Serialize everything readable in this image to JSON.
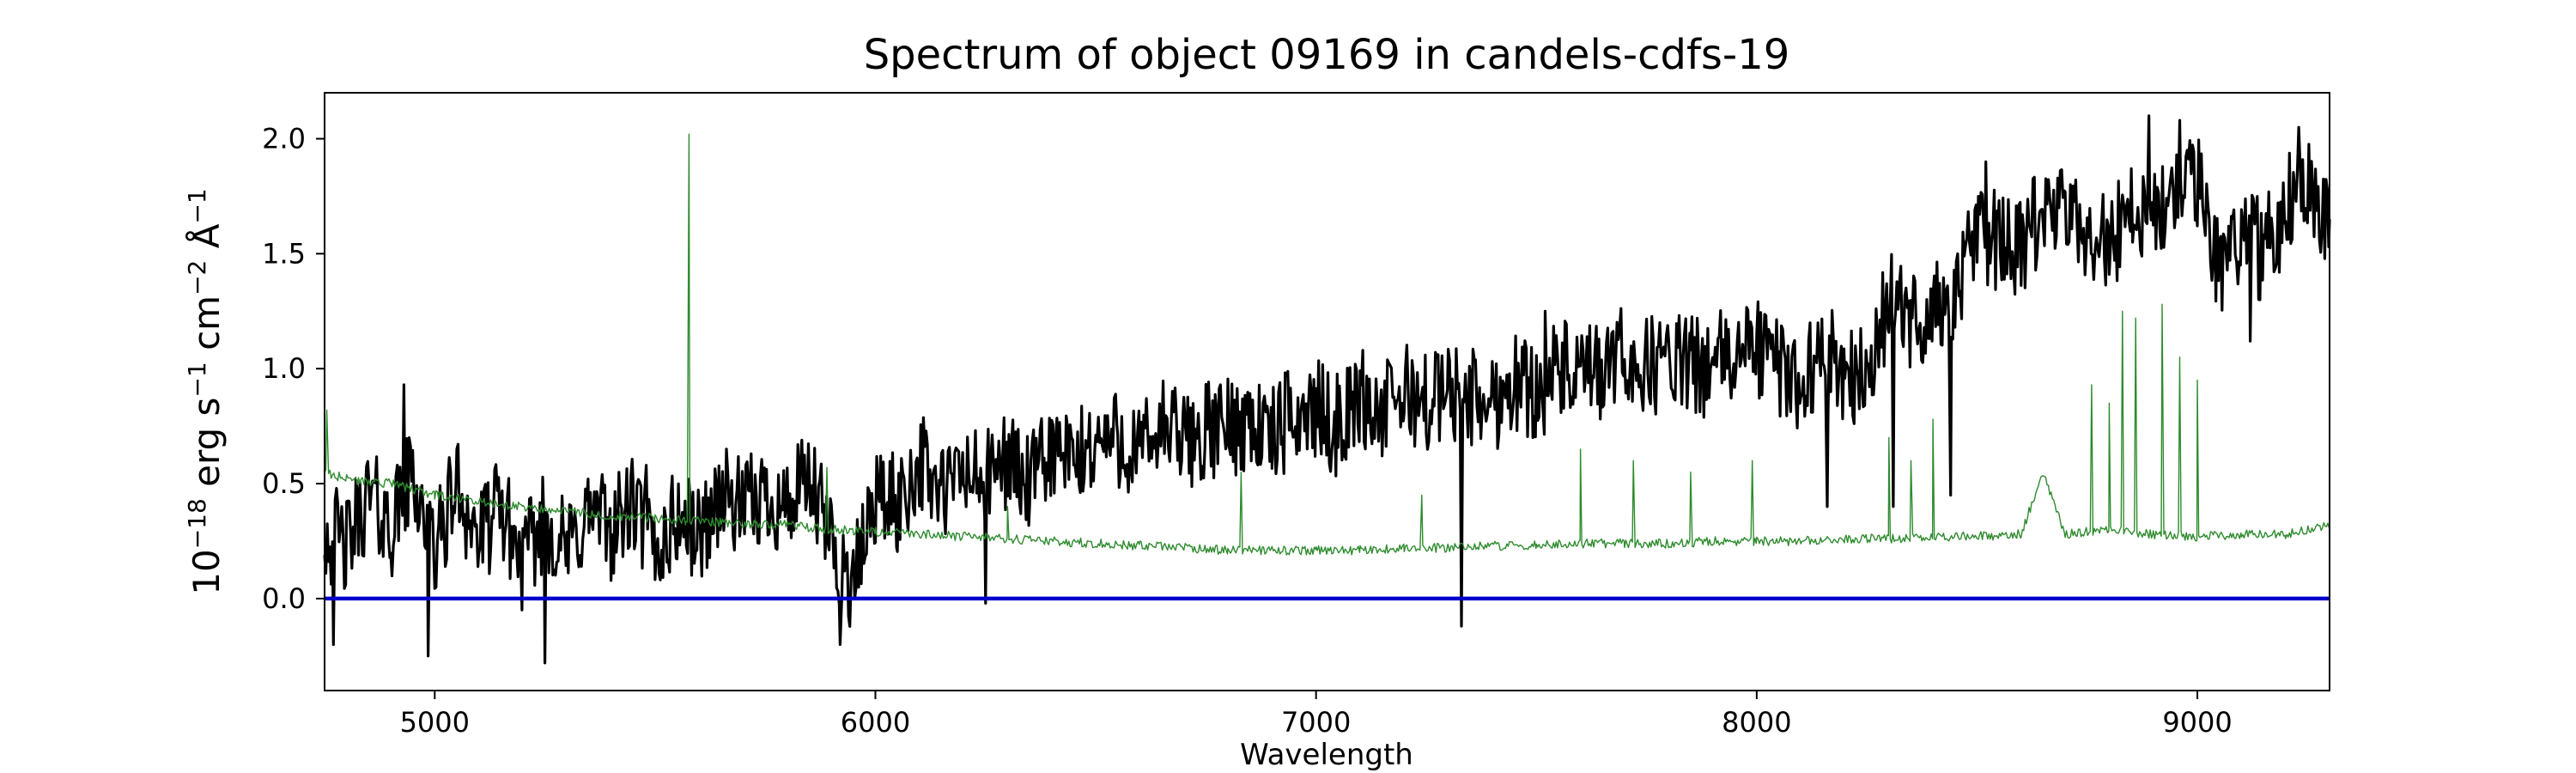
{
  "chart_data": {
    "type": "line",
    "title": "Spectrum of object 09169 in candels-cdfs-19",
    "xlabel": "Wavelength",
    "ylabel": {
      "parts": [
        {
          "text": "10",
          "sup": false
        },
        {
          "text": "−18",
          "sup": true
        },
        {
          "text": " erg s",
          "sup": false
        },
        {
          "text": "−1",
          "sup": true
        },
        {
          "text": " cm",
          "sup": false
        },
        {
          "text": "−2",
          "sup": true
        },
        {
          "text": " Å",
          "sup": false
        },
        {
          "text": "−1",
          "sup": true
        }
      ]
    },
    "xlim": [
      4750,
      9300
    ],
    "ylim": [
      -0.4,
      2.2
    ],
    "xticks": [
      5000,
      6000,
      7000,
      8000,
      9000
    ],
    "yticks": [
      0.0,
      0.5,
      1.0,
      1.5,
      2.0
    ],
    "grid": false,
    "legend": "none",
    "series": [
      {
        "color": "#000000",
        "style": "thick",
        "x": [
          4750,
          4800,
          4850,
          4900,
          4950,
          5000,
          5050,
          5100,
          5150,
          5200,
          5250,
          5300,
          5350,
          5400,
          5450,
          5500,
          5550,
          5600,
          5650,
          5700,
          5750,
          5800,
          5850,
          5900,
          5950,
          6000,
          6050,
          6100,
          6150,
          6200,
          6250,
          6300,
          6350,
          6400,
          6450,
          6500,
          6550,
          6600,
          6650,
          6700,
          6750,
          6800,
          6850,
          6900,
          6950,
          7000,
          7050,
          7100,
          7150,
          7200,
          7250,
          7300,
          7350,
          7400,
          7450,
          7500,
          7550,
          7600,
          7650,
          7700,
          7750,
          7800,
          7850,
          7900,
          7950,
          8000,
          8050,
          8100,
          8150,
          8200,
          8250,
          8300,
          8350,
          8400,
          8450,
          8500,
          8550,
          8600,
          8650,
          8700,
          8750,
          8800,
          8850,
          8900,
          8950,
          9000,
          9050,
          9100,
          9150,
          9200,
          9250,
          9300
        ],
        "y": [
          0.3,
          0.22,
          0.45,
          0.3,
          0.55,
          0.2,
          0.5,
          0.25,
          0.4,
          0.15,
          0.35,
          0.2,
          0.38,
          0.3,
          0.4,
          0.2,
          0.35,
          0.28,
          0.45,
          0.38,
          0.45,
          0.4,
          0.5,
          0.25,
          0.05,
          0.45,
          0.4,
          0.6,
          0.45,
          0.55,
          0.5,
          0.62,
          0.48,
          0.65,
          0.58,
          0.68,
          0.7,
          0.62,
          0.75,
          0.68,
          0.72,
          0.75,
          0.78,
          0.7,
          0.8,
          0.82,
          0.75,
          0.88,
          0.8,
          0.9,
          0.85,
          0.9,
          0.88,
          0.85,
          0.95,
          0.9,
          1.0,
          0.95,
          0.98,
          1.05,
          1.0,
          1.05,
          1.0,
          1.02,
          1.05,
          1.1,
          1.0,
          0.95,
          1.05,
          1.0,
          0.95,
          1.3,
          1.2,
          1.25,
          1.3,
          1.6,
          1.55,
          1.5,
          1.7,
          1.65,
          1.6,
          1.55,
          1.7,
          1.65,
          1.75,
          1.8,
          1.45,
          1.6,
          1.5,
          1.7,
          1.85,
          1.65
        ],
        "spikes": [
          {
            "x": 4770,
            "y": -0.2
          },
          {
            "x": 4930,
            "y": 0.93
          },
          {
            "x": 4985,
            "y": -0.25
          },
          {
            "x": 5050,
            "y": 0.65
          },
          {
            "x": 5250,
            "y": -0.28
          },
          {
            "x": 5480,
            "y": 0.58
          },
          {
            "x": 5920,
            "y": -0.2
          },
          {
            "x": 6250,
            "y": -0.02
          },
          {
            "x": 7330,
            "y": -0.12
          },
          {
            "x": 7520,
            "y": 1.25
          },
          {
            "x": 8160,
            "y": 0.4
          },
          {
            "x": 8260,
            "y": 1.1
          },
          {
            "x": 8310,
            "y": 0.4
          },
          {
            "x": 8440,
            "y": 0.45
          },
          {
            "x": 8520,
            "y": 1.9
          },
          {
            "x": 8890,
            "y": 2.1
          },
          {
            "x": 8960,
            "y": 2.08
          },
          {
            "x": 9120,
            "y": 1.12
          },
          {
            "x": 9230,
            "y": 2.05
          }
        ]
      },
      {
        "color": "#2e8b2e",
        "style": "thin",
        "x": [
          4750,
          4800,
          4900,
          5000,
          5100,
          5200,
          5300,
          5400,
          5500,
          5570,
          5650,
          5800,
          5900,
          6000,
          6100,
          6200,
          6300,
          6400,
          6500,
          6600,
          6700,
          6800,
          6900,
          7000,
          7100,
          7200,
          7300,
          7400,
          7500,
          7600,
          7700,
          7800,
          7900,
          8000,
          8100,
          8200,
          8300,
          8400,
          8500,
          8600,
          8650,
          8700,
          8800,
          8900,
          9000,
          9100,
          9200,
          9300
        ],
        "y": [
          0.55,
          0.52,
          0.5,
          0.45,
          0.42,
          0.4,
          0.38,
          0.36,
          0.35,
          0.34,
          0.33,
          0.32,
          0.3,
          0.29,
          0.28,
          0.27,
          0.26,
          0.25,
          0.24,
          0.23,
          0.22,
          0.21,
          0.21,
          0.21,
          0.21,
          0.22,
          0.22,
          0.23,
          0.23,
          0.24,
          0.24,
          0.24,
          0.25,
          0.25,
          0.25,
          0.26,
          0.26,
          0.27,
          0.27,
          0.28,
          0.55,
          0.28,
          0.3,
          0.28,
          0.27,
          0.28,
          0.28,
          0.32
        ],
        "spikes": [
          {
            "x": 4755,
            "y": 0.82
          },
          {
            "x": 5577,
            "y": 2.02
          },
          {
            "x": 5890,
            "y": 0.57
          },
          {
            "x": 6300,
            "y": 0.4
          },
          {
            "x": 6830,
            "y": 0.55
          },
          {
            "x": 7240,
            "y": 0.45
          },
          {
            "x": 7600,
            "y": 0.65
          },
          {
            "x": 7720,
            "y": 0.6
          },
          {
            "x": 7850,
            "y": 0.55
          },
          {
            "x": 7990,
            "y": 0.6
          },
          {
            "x": 8300,
            "y": 0.7
          },
          {
            "x": 8350,
            "y": 0.6
          },
          {
            "x": 8400,
            "y": 0.78
          },
          {
            "x": 8760,
            "y": 0.93
          },
          {
            "x": 8800,
            "y": 0.85
          },
          {
            "x": 8830,
            "y": 1.25
          },
          {
            "x": 8860,
            "y": 1.22
          },
          {
            "x": 8920,
            "y": 1.28
          },
          {
            "x": 8960,
            "y": 1.05
          },
          {
            "x": 9000,
            "y": 0.95
          }
        ]
      },
      {
        "color": "#0000cc",
        "style": "baseline",
        "x": [
          4750,
          9300
        ],
        "y": [
          0.0,
          0.0
        ]
      }
    ]
  }
}
